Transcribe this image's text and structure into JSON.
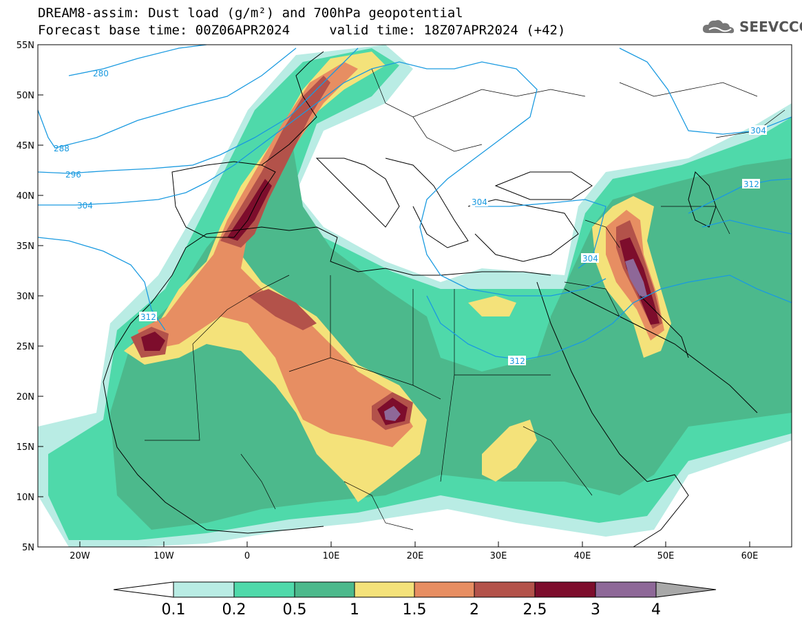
{
  "header": {
    "line1": "DREAM8-assim: Dust load (g/m²) and 700hPa geopotential",
    "line2": "Forecast base time: 00Z06APR2024     valid time: 18Z07APR2024 (+42)"
  },
  "logo": {
    "icon": "cloud-icon",
    "text": "SEEVCCC"
  },
  "axes": {
    "lat_ticks": [
      "55N",
      "50N",
      "45N",
      "40N",
      "35N",
      "30N",
      "25N",
      "20N",
      "15N",
      "10N",
      "5N"
    ],
    "lon_ticks": [
      "20W",
      "10W",
      "0",
      "10E",
      "20E",
      "30E",
      "40E",
      "50E",
      "60E"
    ],
    "lon_range": [
      -25,
      65
    ],
    "lat_range": [
      5,
      55
    ]
  },
  "colorbar": {
    "labels": [
      "0.1",
      "0.2",
      "0.5",
      "1",
      "1.5",
      "2",
      "2.5",
      "3",
      "4"
    ],
    "colors": [
      "#b9ece4",
      "#4fd9aa",
      "#4cb98c",
      "#f4e27a",
      "#e78e62",
      "#b3524a",
      "#7d0d2c",
      "#8e6898",
      "#a8a8a8"
    ]
  },
  "contours": {
    "color": "#1a9ae0",
    "labels": [
      "280",
      "288",
      "296",
      "304",
      "312",
      "304",
      "304",
      "304",
      "312",
      "312",
      "304"
    ]
  }
}
